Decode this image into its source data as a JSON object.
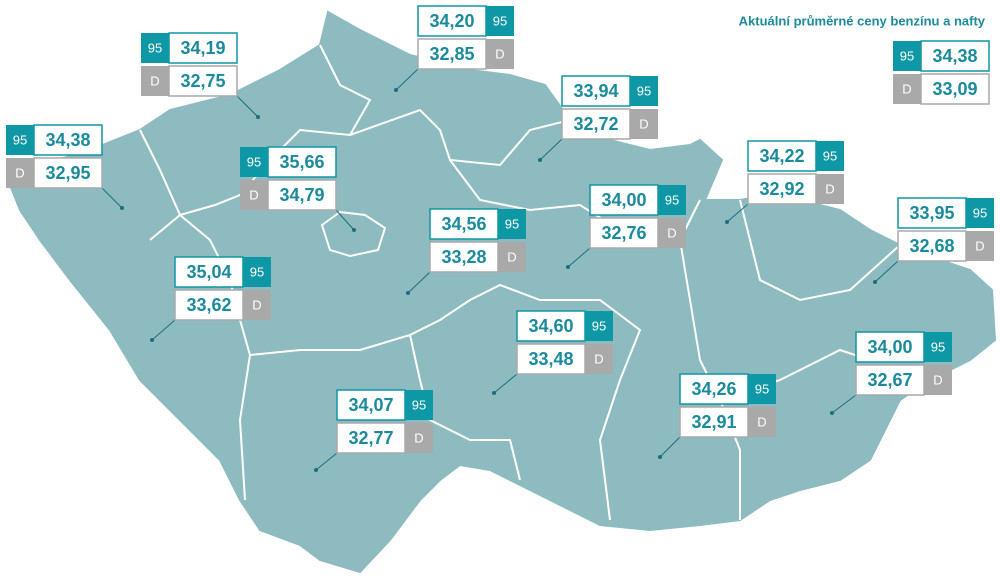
{
  "title": "Aktuální průměrné ceny benzínu a nafty",
  "badges": {
    "petrol": "95",
    "diesel": "D"
  },
  "national": {
    "petrol": "34,38",
    "diesel": "33,09"
  },
  "regions": [
    {
      "petrol": "34,19",
      "diesel": "32,75"
    },
    {
      "petrol": "34,20",
      "diesel": "32,85"
    },
    {
      "petrol": "34,38",
      "diesel": "32,95"
    },
    {
      "petrol": "35,66",
      "diesel": "34,79"
    },
    {
      "petrol": "33,94",
      "diesel": "32,72"
    },
    {
      "petrol": "34,22",
      "diesel": "32,92"
    },
    {
      "petrol": "34,00",
      "diesel": "32,76"
    },
    {
      "petrol": "34,56",
      "diesel": "33,28"
    },
    {
      "petrol": "33,95",
      "diesel": "32,68"
    },
    {
      "petrol": "35,04",
      "diesel": "33,62"
    },
    {
      "petrol": "34,60",
      "diesel": "33,48"
    },
    {
      "petrol": "34,00",
      "diesel": "32,67"
    },
    {
      "petrol": "34,07",
      "diesel": "32,77"
    },
    {
      "petrol": "34,26",
      "diesel": "32,91"
    }
  ]
}
